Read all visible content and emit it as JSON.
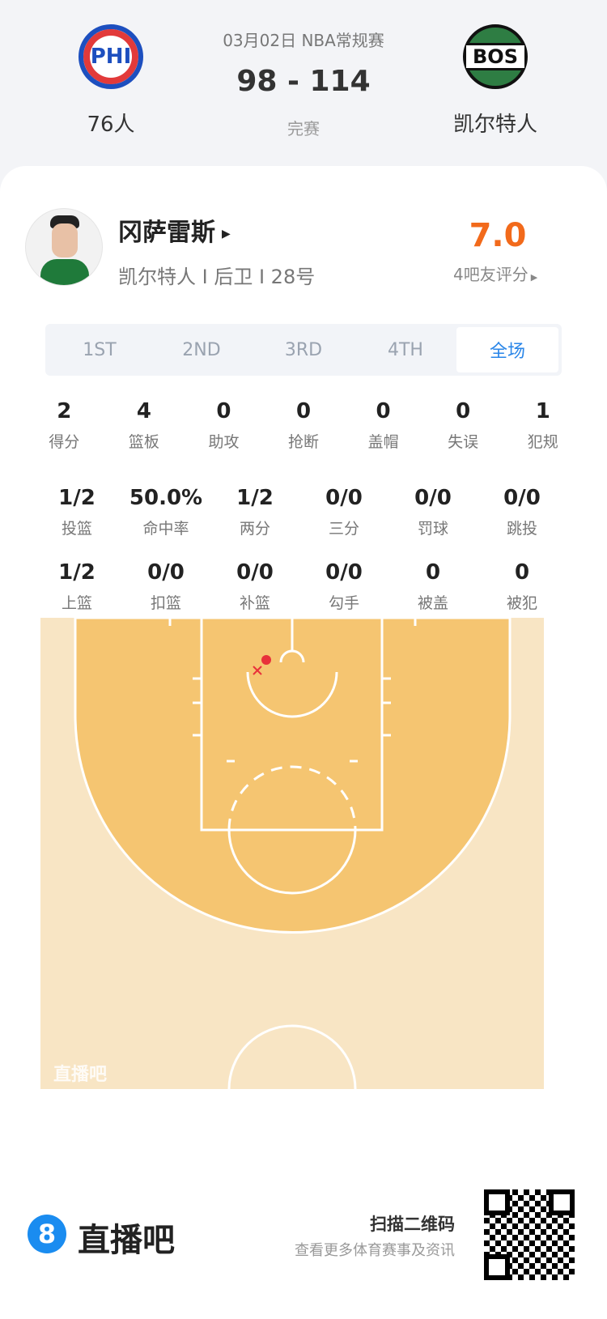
{
  "match": {
    "date_league": "03月02日 NBA常规赛",
    "score": "98 - 114",
    "status": "完赛",
    "home": {
      "abbr": "PHI",
      "name": "76人",
      "color": "#1d4fbf"
    },
    "away": {
      "abbr": "BOS",
      "name": "凯尔特人",
      "color": "#2e7d43"
    }
  },
  "player": {
    "name": "冈萨雷斯",
    "info": "凯尔特人 I 后卫 I 28号",
    "rating": "7.0",
    "rating_label": "4吧友评分",
    "rating_color": "#f26a1b"
  },
  "tabs": [
    {
      "label": "1ST"
    },
    {
      "label": "2ND"
    },
    {
      "label": "3RD"
    },
    {
      "label": "4TH"
    },
    {
      "label": "全场",
      "active": true
    }
  ],
  "stats_rows": [
    [
      {
        "v": "2",
        "l": "得分"
      },
      {
        "v": "4",
        "l": "篮板"
      },
      {
        "v": "0",
        "l": "助攻"
      },
      {
        "v": "0",
        "l": "抢断"
      },
      {
        "v": "0",
        "l": "盖帽"
      },
      {
        "v": "0",
        "l": "失误"
      },
      {
        "v": "1",
        "l": "犯规"
      }
    ],
    [
      {
        "v": "1/2",
        "l": "投篮"
      },
      {
        "v": "50.0%",
        "l": "命中率"
      },
      {
        "v": "1/2",
        "l": "两分"
      },
      {
        "v": "0/0",
        "l": "三分"
      },
      {
        "v": "0/0",
        "l": "罚球"
      },
      {
        "v": "0/0",
        "l": "跳投"
      }
    ],
    [
      {
        "v": "1/2",
        "l": "上篮"
      },
      {
        "v": "0/0",
        "l": "扣篮"
      },
      {
        "v": "0/0",
        "l": "补篮"
      },
      {
        "v": "0/0",
        "l": "勾手"
      },
      {
        "v": "0",
        "l": "被盖"
      },
      {
        "v": "0",
        "l": "被犯"
      }
    ]
  ],
  "shot_chart": {
    "watermark": "直播吧",
    "shots": [
      {
        "result": "made",
        "color": "#e8313a"
      },
      {
        "result": "missed",
        "color": "#e8313a"
      }
    ]
  },
  "footer": {
    "brand": "直播吧",
    "brand_badge": "8",
    "scan_title": "扫描二维码",
    "scan_sub": "查看更多体育赛事及资讯"
  }
}
